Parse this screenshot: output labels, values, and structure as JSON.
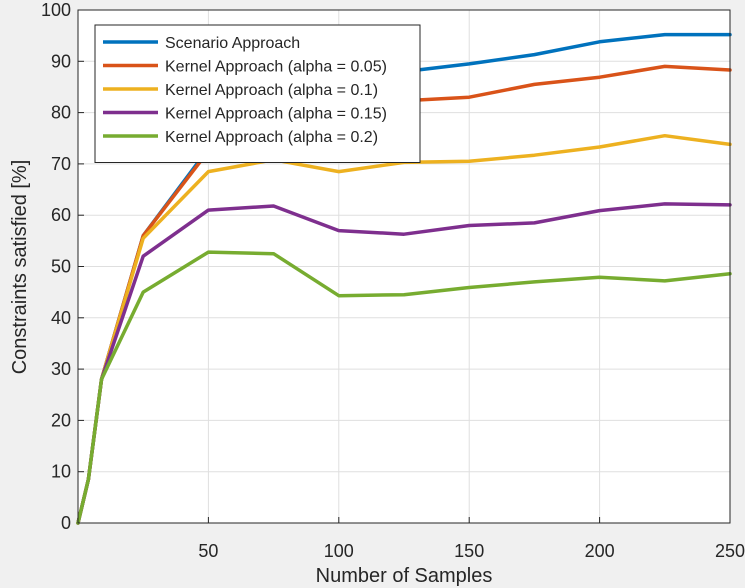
{
  "chart_data": {
    "type": "line",
    "title": "",
    "xlabel": "Number of Samples",
    "ylabel": "Constraints satisfied [%]",
    "xlim": [
      0,
      250
    ],
    "ylim": [
      0,
      100
    ],
    "xticks": [
      50,
      100,
      150,
      200,
      250
    ],
    "yticks": [
      0,
      10,
      20,
      30,
      40,
      50,
      60,
      70,
      80,
      90,
      100
    ],
    "grid": true,
    "legend_position": "top-left",
    "series": [
      {
        "name": "Scenario Approach",
        "color": "#0072BD",
        "x": [
          0,
          4,
          9,
          25,
          50,
          75,
          100,
          125,
          150,
          175,
          200,
          225,
          250
        ],
        "y": [
          0,
          8.5,
          28,
          56,
          73,
          80,
          85,
          88,
          89.5,
          91.3,
          93.8,
          95.2,
          95.2
        ]
      },
      {
        "name": "Kernel Approach (alpha = 0.05)",
        "color": "#D95319",
        "x": [
          0,
          4,
          9,
          25,
          50,
          75,
          100,
          125,
          150,
          175,
          200,
          225,
          250
        ],
        "y": [
          0,
          8.5,
          28,
          56,
          72.5,
          79.5,
          81.5,
          82.3,
          83,
          85.5,
          86.9,
          89,
          88.3
        ]
      },
      {
        "name": "Kernel Approach (alpha = 0.1)",
        "color": "#EDB120",
        "x": [
          0,
          4,
          9,
          25,
          50,
          75,
          100,
          125,
          150,
          175,
          200,
          225,
          250
        ],
        "y": [
          0,
          8.5,
          28,
          55.5,
          68.5,
          70.8,
          68.5,
          70.3,
          70.5,
          71.7,
          73.3,
          75.5,
          73.8
        ]
      },
      {
        "name": "Kernel Approach (alpha = 0.15)",
        "color": "#7E2F8E",
        "x": [
          0,
          4,
          9,
          25,
          50,
          75,
          100,
          125,
          150,
          175,
          200,
          225,
          250
        ],
        "y": [
          0,
          8.5,
          28,
          52,
          61,
          61.8,
          57,
          56.3,
          58,
          58.5,
          60.9,
          62.2,
          62
        ]
      },
      {
        "name": "Kernel Approach (alpha = 0.2)",
        "color": "#77AC30",
        "x": [
          0,
          4,
          9,
          25,
          50,
          75,
          100,
          125,
          150,
          175,
          200,
          225,
          250
        ],
        "y": [
          0,
          8.5,
          28,
          45,
          52.8,
          52.5,
          44.3,
          44.5,
          45.9,
          47,
          47.9,
          47.2,
          48.6
        ]
      }
    ]
  }
}
